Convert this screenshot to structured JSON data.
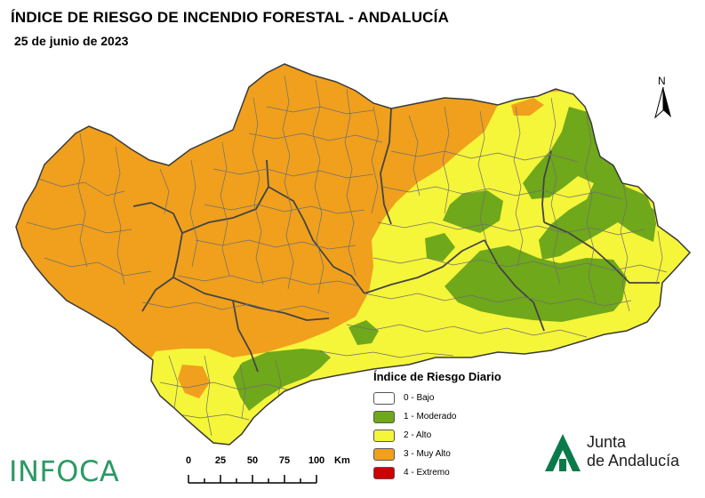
{
  "header": {
    "title": "ÍNDICE DE RIESGO DE INCENDIO FORESTAL - ANDALUCÍA",
    "date": "25 de junio de 2023"
  },
  "north_arrow": {
    "label": "N"
  },
  "legend": {
    "title": "Índice de Riesgo Diario",
    "items": [
      {
        "label": "0 - Bajo",
        "color": "#ffffff"
      },
      {
        "label": "1 - Moderado",
        "color": "#6fa81b"
      },
      {
        "label": "2 - Alto",
        "color": "#f5f53a"
      },
      {
        "label": "3 - Muy Alto",
        "color": "#f0a01d"
      },
      {
        "label": "4 - Extremo",
        "color": "#cc0000"
      }
    ]
  },
  "scale_bar": {
    "ticks": [
      "0",
      "25",
      "50",
      "75",
      "100"
    ],
    "unit": "Km"
  },
  "logos": {
    "infoca": "INFOCA",
    "junta_line1": "Junta",
    "junta_line2": "de Andalucía"
  }
}
